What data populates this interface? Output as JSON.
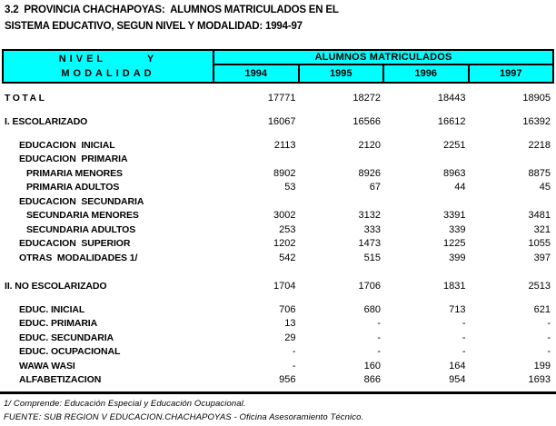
{
  "title": {
    "line1": "3.2  PROVINCIA CHACHAPOYAS:  ALUMNOS MATRICULADOS EN EL",
    "line2": "SISTEMA EDUCATIVO, SEGUN NIVEL Y MODALIDAD: 1994-97"
  },
  "colors": {
    "header_bg": "#00FFFF",
    "border": "#000000",
    "text": "#000000",
    "page_bg": "#FFFFFF"
  },
  "table": {
    "header": {
      "col1_line1": "NIVEL   Y",
      "col1_line2": "MODALIDAD",
      "span_label": "ALUMNOS MATRICULADOS",
      "years": [
        "1994",
        "1995",
        "1996",
        "1997"
      ]
    },
    "rows": [
      {
        "label": "TOTAL",
        "indent": 0,
        "letter_spaced": true,
        "gap_before": 8,
        "values": [
          "17771",
          "18272",
          "18443",
          "18905"
        ]
      },
      {
        "label": "I. ESCOLARIZADO",
        "indent": 0,
        "letter_spaced": false,
        "gap_before": 10.5,
        "values": [
          "16067",
          "16566",
          "16612",
          "16392"
        ]
      },
      {
        "label": "EDUCACION  INICIAL",
        "indent": 1,
        "letter_spaced": false,
        "gap_before": 10.5,
        "values": [
          "2113",
          "2120",
          "2251",
          "2218"
        ]
      },
      {
        "label": "EDUCACION  PRIMARIA",
        "indent": 1,
        "letter_spaced": false,
        "gap_before": 0,
        "values": [
          "",
          "",
          "",
          ""
        ]
      },
      {
        "label": "PRIMARIA MENORES",
        "indent": 2,
        "letter_spaced": false,
        "gap_before": 0,
        "values": [
          "8902",
          "8926",
          "8963",
          "8875"
        ]
      },
      {
        "label": "PRIMARIA ADULTOS",
        "indent": 2,
        "letter_spaced": false,
        "gap_before": 0,
        "values": [
          "53",
          "67",
          "44",
          "45"
        ]
      },
      {
        "label": "EDUCACION  SECUNDARIA",
        "indent": 1,
        "letter_spaced": false,
        "gap_before": 0,
        "values": [
          "",
          "",
          "",
          ""
        ]
      },
      {
        "label": "SECUNDARIA MENORES",
        "indent": 2,
        "letter_spaced": false,
        "gap_before": 0,
        "values": [
          "3002",
          "3132",
          "3391",
          "3481"
        ]
      },
      {
        "label": "SECUNDARIA ADULTOS",
        "indent": 2,
        "letter_spaced": false,
        "gap_before": 0,
        "values": [
          "253",
          "333",
          "339",
          "321"
        ]
      },
      {
        "label": "EDUCACION  SUPERIOR",
        "indent": 1,
        "letter_spaced": false,
        "gap_before": 0,
        "values": [
          "1202",
          "1473",
          "1225",
          "1055"
        ]
      },
      {
        "label": "OTRAS  MODALIDADES 1/",
        "indent": 1,
        "letter_spaced": false,
        "gap_before": 0,
        "values": [
          "542",
          "515",
          "399",
          "397"
        ]
      },
      {
        "label": "II. NO ESCOLARIZADO",
        "indent": 0,
        "letter_spaced": false,
        "gap_before": 15.5,
        "values": [
          "1704",
          "1706",
          "1831",
          "2513"
        ]
      },
      {
        "label": "EDUC. INICIAL",
        "indent": 1,
        "letter_spaced": false,
        "gap_before": 10.5,
        "values": [
          "706",
          "680",
          "713",
          "621"
        ]
      },
      {
        "label": "EDUC. PRIMARIA",
        "indent": 1,
        "letter_spaced": false,
        "gap_before": 0,
        "values": [
          "13",
          "-",
          "-",
          "-"
        ]
      },
      {
        "label": "EDUC. SECUNDARIA",
        "indent": 1,
        "letter_spaced": false,
        "gap_before": 0,
        "values": [
          "29",
          "-",
          "-",
          "-"
        ]
      },
      {
        "label": "EDUC. OCUPACIONAL",
        "indent": 1,
        "letter_spaced": false,
        "gap_before": 0,
        "values": [
          "-",
          "-",
          "-",
          "-"
        ]
      },
      {
        "label": "WAWA WASI",
        "indent": 1,
        "letter_spaced": false,
        "gap_before": 0,
        "values": [
          "-",
          "160",
          "164",
          "199"
        ]
      },
      {
        "label": "ALFABETIZACION",
        "indent": 1,
        "letter_spaced": false,
        "gap_before": 0,
        "values": [
          "956",
          "866",
          "954",
          "1693"
        ]
      }
    ]
  },
  "footnotes": {
    "note1": "1/ Comprende: Educación Especial y Educación Ocupacional.",
    "note2": "FUENTE: SUB REGION V EDUCACION.CHACHAPOYAS - Oficina Asesoramiento Técnico."
  }
}
